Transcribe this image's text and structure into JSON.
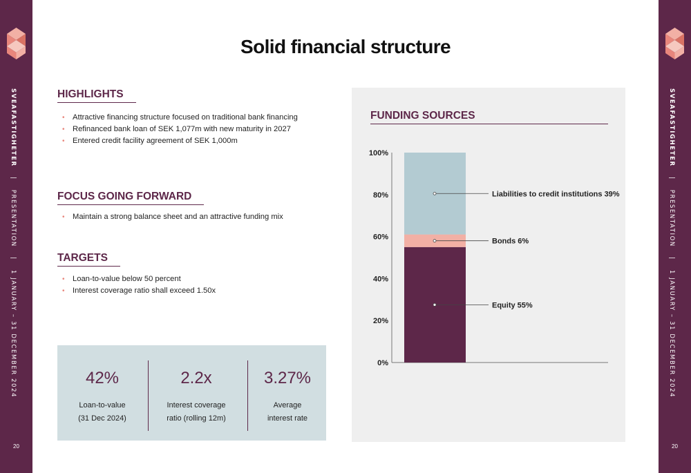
{
  "slide": {
    "title": "Solid financial structure",
    "page_number": "20"
  },
  "sidebar": {
    "brand": "SVEAFASTIGHETER",
    "separator": "|",
    "section": "PRESENTATION",
    "period": "1 JANUARY – 31 DECEMBER 2024"
  },
  "highlights": {
    "heading": "HIGHLIGHTS",
    "items": [
      "Attractive financing structure focused on traditional bank financing",
      "Refinanced bank loan of SEK 1,077m with new maturity in 2027",
      "Entered credit facility agreement of SEK 1,000m"
    ]
  },
  "focus": {
    "heading": "FOCUS GOING FORWARD",
    "items": [
      "Maintain a strong balance sheet and an attractive funding mix"
    ]
  },
  "targets": {
    "heading": "TARGETS",
    "items": [
      "Loan-to-value below 50 percent",
      "Interest coverage ratio shall exceed 1.50x"
    ]
  },
  "kpis": [
    {
      "value": "42%",
      "label_line1": "Loan-to-value",
      "label_line2": "(31 Dec 2024)"
    },
    {
      "value": "2.2x",
      "label_line1": "Interest coverage",
      "label_line2": "ratio (rolling 12m)"
    },
    {
      "value": "3.27%",
      "label_line1": "Average",
      "label_line2": "interest rate"
    }
  ],
  "colors": {
    "brand_purple": "#5d2749",
    "bullet_coral": "#e8867c",
    "kpi_panel": "#d1dee1",
    "chart_panel": "#efefef"
  },
  "chart_data": {
    "type": "bar",
    "stacked": true,
    "title": "FUNDING SOURCES",
    "ylim": [
      0,
      100
    ],
    "yticks": [
      0,
      20,
      40,
      60,
      80,
      100
    ],
    "ytick_labels": [
      "0%",
      "20%",
      "40%",
      "60%",
      "80%",
      "100%"
    ],
    "categories": [
      ""
    ],
    "series": [
      {
        "name": "Equity 55%",
        "value": 55,
        "color": "#5d2749"
      },
      {
        "name": "Bonds 6%",
        "value": 6,
        "color": "#f2b0a5"
      },
      {
        "name": "Liabilities to credit institutions 39%",
        "value": 39,
        "color": "#b3cbd2"
      }
    ],
    "grid": false,
    "legend": "annotations-right"
  }
}
